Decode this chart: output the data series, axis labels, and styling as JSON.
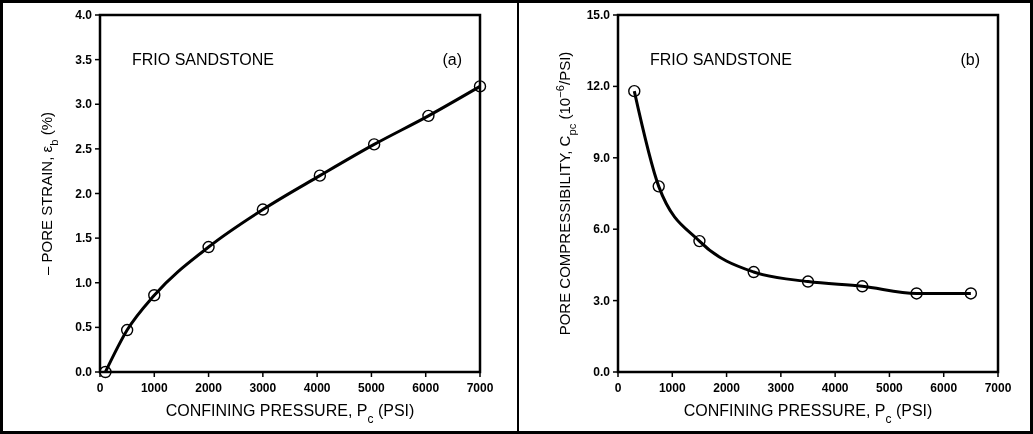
{
  "chart_data": [
    {
      "type": "line",
      "xlabel": "CONFINING PRESSURE, P$_{c}$  (PSI)",
      "ylabel": "– PORE STRAIN, ε$_{b}$  (%)",
      "annotations": [
        "FRIO SANDSTONE",
        "(a)"
      ],
      "x": [
        100,
        500,
        1000,
        2000,
        3000,
        4050,
        5050,
        6050,
        7000
      ],
      "series": [
        {
          "color": "#000000",
          "values": [
            0,
            0.47,
            0.86,
            1.4,
            1.82,
            2.2,
            2.55,
            2.87,
            3.2
          ]
        }
      ],
      "xlim": [
        0,
        7000
      ],
      "xticks": [
        0,
        1000,
        2000,
        3000,
        4000,
        5000,
        6000,
        7000
      ],
      "ylim": [
        0,
        4
      ],
      "yticks": [
        {
          "value": 0,
          "label": "0.0"
        },
        {
          "value": 0.5,
          "label": "0.5"
        },
        {
          "value": 1,
          "label": "1.0"
        },
        {
          "value": 1.5,
          "label": "1.5"
        },
        {
          "value": 2,
          "label": "2.0"
        },
        {
          "value": 2.5,
          "label": "2.5"
        },
        {
          "value": 3,
          "label": "3.0"
        },
        {
          "value": 3.5,
          "label": "3.5"
        },
        {
          "value": 4,
          "label": "4.0"
        }
      ],
      "marker": "circle",
      "line_style": "solid",
      "grid": false
    },
    {
      "type": "line",
      "xlabel": "CONFINING PRESSURE, P$_{c}$  (PSI)",
      "ylabel": "PORE COMPRESSIBILITY, C$_{pc}$  (10$^{−6}$/PSI)",
      "annotations": [
        "FRIO SANDSTONE",
        "(b)"
      ],
      "x": [
        300,
        750,
        1500,
        2500,
        3500,
        4500,
        5500,
        6500
      ],
      "series": [
        {
          "color": "#000000",
          "values": [
            11.8,
            7.8,
            5.5,
            4.2,
            3.8,
            3.6,
            3.3,
            3.3
          ]
        }
      ],
      "xlim": [
        0,
        7000
      ],
      "xticks": [
        0,
        1000,
        2000,
        3000,
        4000,
        5000,
        6000,
        7000
      ],
      "ylim": [
        0,
        15
      ],
      "yticks": [
        {
          "value": 0,
          "label": "0.0"
        },
        {
          "value": 3,
          "label": "3.0"
        },
        {
          "value": 6,
          "label": "6.0"
        },
        {
          "value": 9,
          "label": "9.0"
        },
        {
          "value": 12,
          "label": "12.0"
        },
        {
          "value": 15,
          "label": "15.0"
        }
      ],
      "marker": "circle",
      "line_style": "solid",
      "grid": false
    }
  ]
}
